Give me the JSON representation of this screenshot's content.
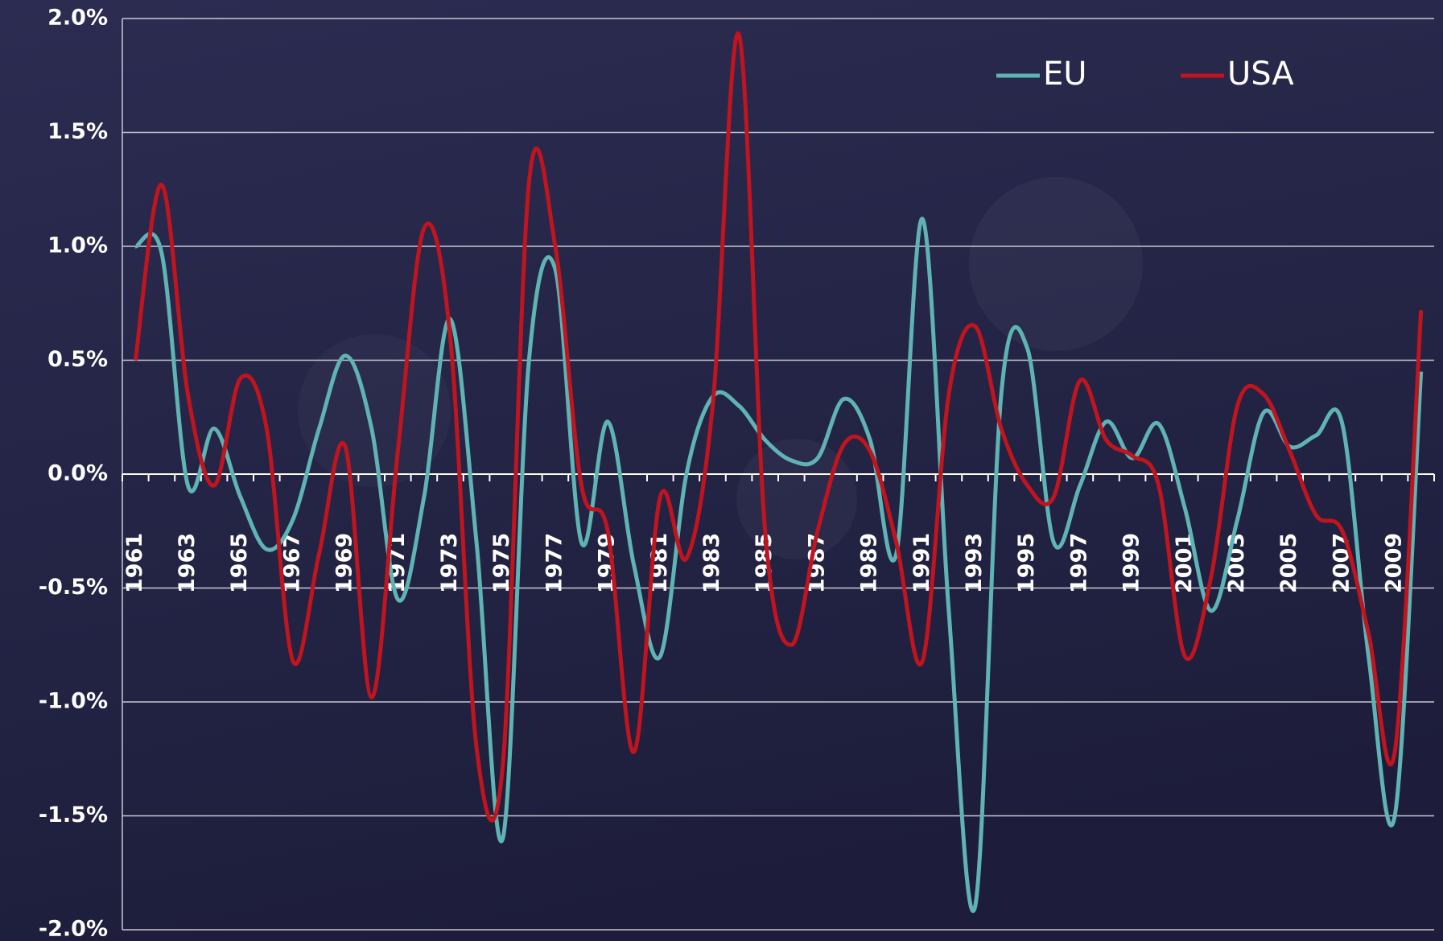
{
  "chart_data": {
    "type": "line",
    "categories": [
      "1961",
      null,
      "1963",
      null,
      "1965",
      null,
      "1967",
      null,
      "1969",
      null,
      "1971",
      null,
      "1973",
      null,
      "1975",
      null,
      "1977",
      null,
      "1979",
      null,
      "1981",
      null,
      "1983",
      null,
      "1985",
      null,
      "1987",
      null,
      "1989",
      null,
      "1991",
      null,
      "1993",
      null,
      "1995",
      null,
      "1997",
      null,
      "1999",
      null,
      "2001",
      null,
      "2003",
      null,
      "2005",
      null,
      "2007",
      null,
      "2009",
      null
    ],
    "series": [
      {
        "name": "EU",
        "color": "#5fb3b3",
        "values": [
          1.0,
          0.97,
          -0.05,
          0.2,
          -0.1,
          -0.33,
          -0.2,
          0.2,
          0.52,
          0.2,
          -0.55,
          -0.1,
          0.68,
          -0.3,
          -1.6,
          0.5,
          0.9,
          -0.3,
          0.23,
          -0.4,
          -0.8,
          0.0,
          0.34,
          0.3,
          0.15,
          0.06,
          0.07,
          0.33,
          0.15,
          -0.35,
          1.12,
          -0.6,
          -1.9,
          0.35,
          0.55,
          -0.3,
          -0.05,
          0.23,
          0.07,
          0.22,
          -0.15,
          -0.6,
          -0.2,
          0.27,
          0.12,
          0.17,
          0.22,
          -0.8,
          -1.5,
          0.45
        ]
      },
      {
        "name": "USA",
        "color": "#c0141e",
        "values": [
          0.5,
          1.27,
          0.35,
          -0.05,
          0.42,
          0.2,
          -0.82,
          -0.35,
          0.12,
          -0.98,
          0.1,
          1.08,
          0.6,
          -1.2,
          -1.28,
          1.28,
          1.0,
          -0.05,
          -0.25,
          -1.22,
          -0.1,
          -0.37,
          0.3,
          1.93,
          -0.25,
          -0.75,
          -0.25,
          0.13,
          0.1,
          -0.3,
          -0.82,
          0.35,
          0.65,
          0.2,
          -0.05,
          -0.1,
          0.41,
          0.15,
          0.08,
          -0.05,
          -0.8,
          -0.45,
          0.3,
          0.35,
          0.1,
          -0.18,
          -0.25,
          -0.7,
          -1.22,
          0.72
        ]
      }
    ],
    "ylim": [
      -2,
      2
    ],
    "yticks": [
      {
        "value": -2,
        "label": "-2.0%"
      },
      {
        "value": -1.5,
        "label": "-1.5%"
      },
      {
        "value": -1,
        "label": "-1.0%"
      },
      {
        "value": -0.5,
        "label": "-0.5%"
      },
      {
        "value": 0,
        "label": "0.0%"
      },
      {
        "value": 0.5,
        "label": "0.5%"
      },
      {
        "value": 1,
        "label": "1.0%"
      },
      {
        "value": 1.5,
        "label": "1.5%"
      },
      {
        "value": 2,
        "label": "2.0%"
      }
    ],
    "grid": true,
    "legend": "upper right"
  }
}
